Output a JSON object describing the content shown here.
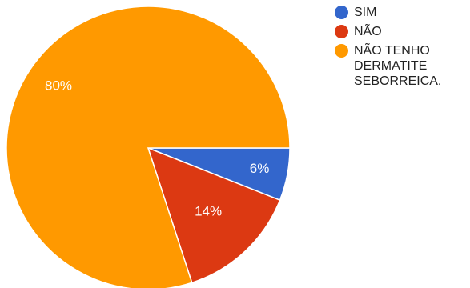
{
  "chart_data": {
    "type": "pie",
    "slices": [
      {
        "name": "SIM",
        "value": 6,
        "label": "6%",
        "color": "#3366cc"
      },
      {
        "name": "NÃO",
        "value": 14,
        "label": "14%",
        "color": "#dc3912"
      },
      {
        "name": "NÃO TENHO DERMATITE SEBORREICA.",
        "value": 80,
        "label": "80%",
        "color": "#ff9900"
      }
    ],
    "start_angle_deg": 0,
    "direction": "clockwise",
    "legend_position": "right"
  },
  "legend": {
    "items": [
      {
        "label": "SIM",
        "color": "#3366cc"
      },
      {
        "label": "NÃO",
        "color": "#dc3912"
      },
      {
        "label": "NÃO TENHO DERMATITE SEBORREICA.",
        "color": "#ff9900"
      }
    ]
  }
}
